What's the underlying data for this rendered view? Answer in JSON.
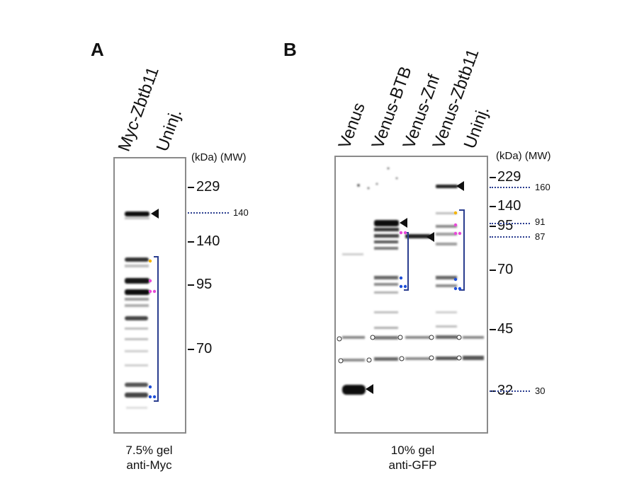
{
  "panels": {
    "a": {
      "letter": "A",
      "lanes": [
        "Myc-Zbtb11",
        "Uninj."
      ],
      "mw_header": "(kDa) (MW)",
      "mw_markers": [
        "229",
        "140",
        "95",
        "70"
      ],
      "annotation": "140",
      "caption_line1": "7.5% gel",
      "caption_line2": "anti-Myc"
    },
    "b": {
      "letter": "B",
      "lanes": [
        "Venus",
        "Venus-BTB",
        "Venus-Znf",
        "Venus-Zbtb11",
        "Uninj."
      ],
      "mw_header": "(kDa) (MW)",
      "mw_markers": [
        "229",
        "140",
        "95",
        "70",
        "45",
        "32"
      ],
      "annotations": [
        "160",
        "91",
        "87",
        "30"
      ],
      "caption_line1": "10% gel",
      "caption_line2": "anti-GFP"
    }
  },
  "colors": {
    "band": "#1a1a1a",
    "bracket": "#2a3d8f",
    "dot_orange": "#f5b400",
    "dot_pink": "#e84ad8",
    "dot_blue": "#1f4fd8"
  }
}
